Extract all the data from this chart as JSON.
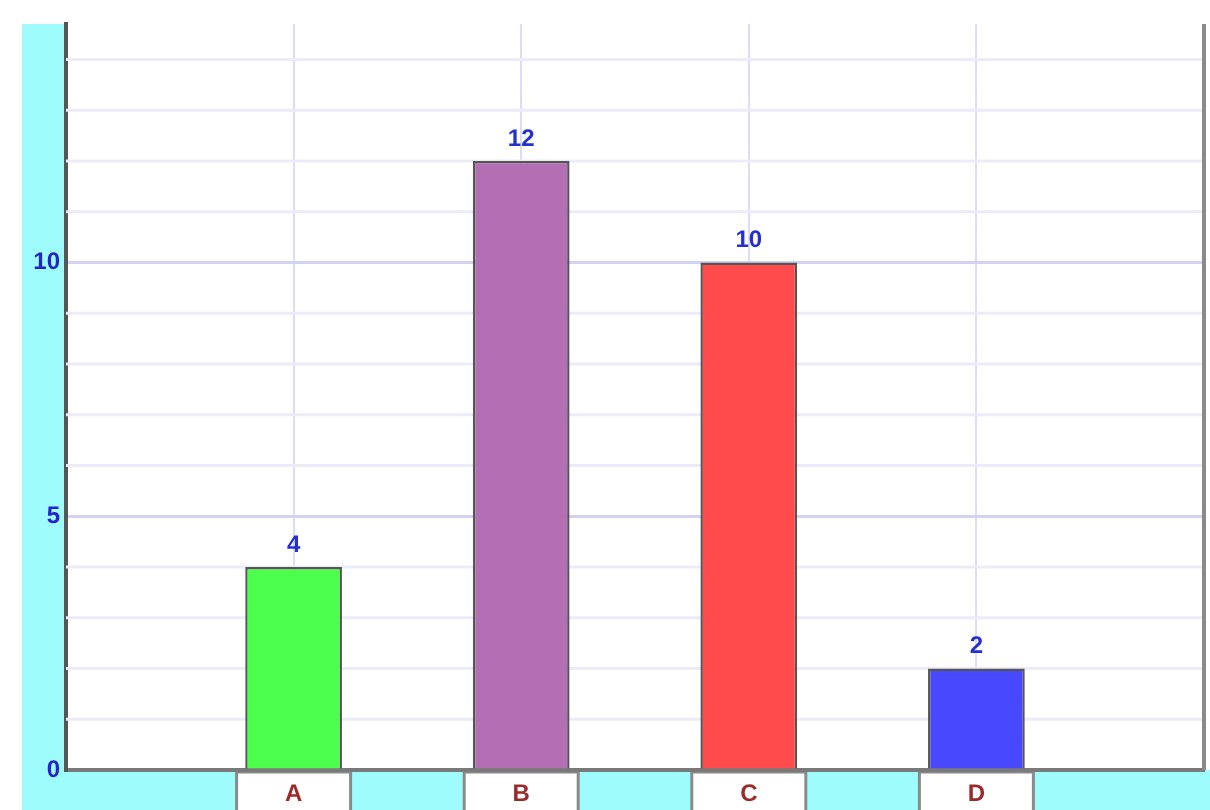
{
  "chart_data": {
    "type": "bar",
    "categories": [
      "A",
      "B",
      "C",
      "D"
    ],
    "values": [
      4,
      12,
      10,
      2
    ],
    "colors": [
      "#4cff4c",
      "#b46eb4",
      "#ff4b4b",
      "#4848ff"
    ],
    "ylim": [
      0,
      14.7
    ],
    "yticks": [
      0,
      {
        "value": 1,
        "label": null
      },
      {
        "value": 2,
        "label": null
      },
      {
        "value": 3,
        "label": null
      },
      {
        "value": 4,
        "label": null
      },
      5,
      {
        "value": 6,
        "label": null
      },
      {
        "value": 7,
        "label": null
      },
      {
        "value": 8,
        "label": null
      },
      {
        "value": 9,
        "label": null
      },
      10,
      {
        "value": 11,
        "label": null
      },
      {
        "value": 12,
        "label": null
      },
      {
        "value": 13,
        "label": null
      },
      {
        "value": 14,
        "label": null
      }
    ],
    "grid": true,
    "data_labels": true
  }
}
